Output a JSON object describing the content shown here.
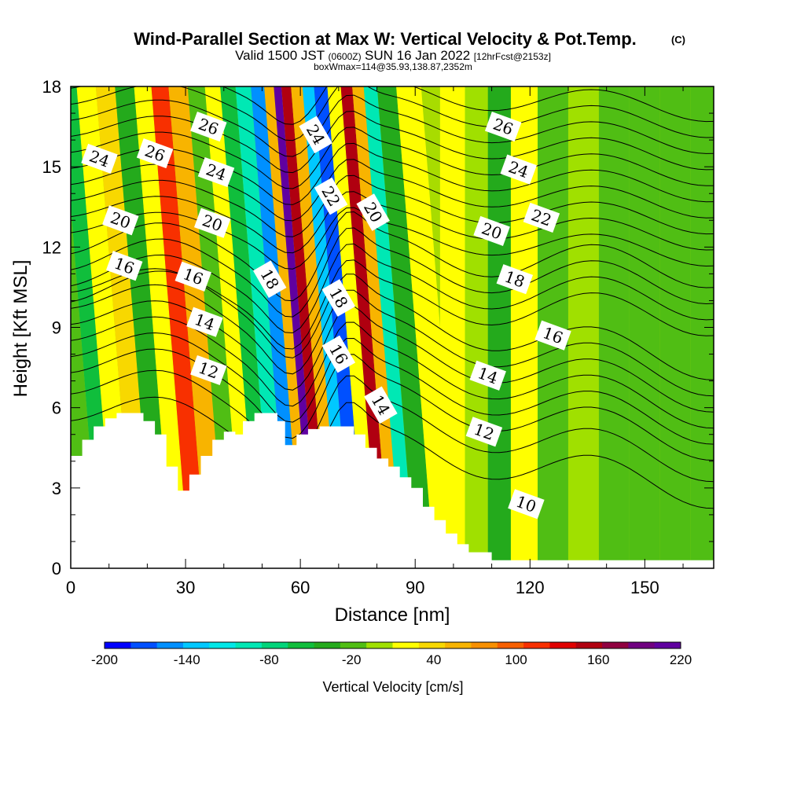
{
  "chart_data": {
    "type": "heatmap",
    "title": "Wind-Parallel Section at Max W: Vertical Velocity & Pot.Temp.",
    "title_mark": "(C)",
    "subtitle_parts": [
      "Valid 1500 JST",
      "(0600Z)",
      "SUN 16 Jan 2022",
      "[12hrFcst@2153z]"
    ],
    "subtitle2": "boxWmax=114@35.93,138.87,2352m",
    "xlabel": "Distance [nm]",
    "ylabel": "Height [Kft MSL]",
    "xlim": [
      0,
      168
    ],
    "ylim": [
      0,
      18
    ],
    "x_ticks": [
      0,
      30,
      60,
      90,
      120,
      150
    ],
    "y_ticks": [
      0,
      3,
      6,
      9,
      12,
      15,
      18
    ],
    "colorbar": {
      "label": "Vertical Velocity [cm/s]",
      "tick_labels": [
        "-200",
        "-140",
        "-80",
        "-20",
        "40",
        "100",
        "160",
        "220"
      ],
      "colors": [
        "#0000ff",
        "#0050ff",
        "#0090ff",
        "#00c8ff",
        "#00e8e8",
        "#00e8b4",
        "#00d47a",
        "#10be3c",
        "#24aa1c",
        "#50be14",
        "#a0e000",
        "#ffff00",
        "#f8d800",
        "#f8b400",
        "#f89000",
        "#f86000",
        "#f83000",
        "#e00000",
        "#b00010",
        "#900040",
        "#700080",
        "#6000a0"
      ]
    },
    "terrain_kft": [
      [
        0,
        4.2
      ],
      [
        3,
        4.2
      ],
      [
        3,
        4.8
      ],
      [
        6,
        4.8
      ],
      [
        6,
        5.3
      ],
      [
        9,
        5.3
      ],
      [
        9,
        5.6
      ],
      [
        12,
        5.6
      ],
      [
        12,
        5.8
      ],
      [
        19,
        5.8
      ],
      [
        19,
        5.5
      ],
      [
        22,
        5.5
      ],
      [
        22,
        5.0
      ],
      [
        25,
        5.0
      ],
      [
        25,
        3.8
      ],
      [
        28,
        3.8
      ],
      [
        28,
        2.9
      ],
      [
        31,
        2.9
      ],
      [
        31,
        3.5
      ],
      [
        34,
        3.5
      ],
      [
        34,
        4.2
      ],
      [
        37,
        4.2
      ],
      [
        37,
        4.8
      ],
      [
        40,
        4.8
      ],
      [
        40,
        5.1
      ],
      [
        43,
        5.1
      ],
      [
        43,
        5.0
      ],
      [
        45,
        5.0
      ],
      [
        45,
        5.5
      ],
      [
        48,
        5.5
      ],
      [
        48,
        5.8
      ],
      [
        54,
        5.8
      ],
      [
        54,
        5.5
      ],
      [
        56,
        5.5
      ],
      [
        56,
        4.6
      ],
      [
        59,
        4.6
      ],
      [
        59,
        5.0
      ],
      [
        62,
        5.0
      ],
      [
        62,
        5.2
      ],
      [
        65,
        5.2
      ],
      [
        65,
        5.3
      ],
      [
        74,
        5.3
      ],
      [
        74,
        5.0
      ],
      [
        77,
        5.0
      ],
      [
        77,
        4.5
      ],
      [
        80,
        4.5
      ],
      [
        80,
        4.1
      ],
      [
        83,
        4.1
      ],
      [
        83,
        3.8
      ],
      [
        86,
        3.8
      ],
      [
        86,
        3.4
      ],
      [
        89,
        3.4
      ],
      [
        89,
        3.0
      ],
      [
        92,
        3.0
      ],
      [
        92,
        2.3
      ],
      [
        95,
        2.3
      ],
      [
        95,
        1.8
      ],
      [
        98,
        1.8
      ],
      [
        98,
        1.3
      ],
      [
        101,
        1.3
      ],
      [
        101,
        0.9
      ],
      [
        104,
        0.9
      ],
      [
        104,
        0.6
      ],
      [
        110,
        0.6
      ],
      [
        110,
        0.3
      ],
      [
        168,
        0.3
      ]
    ],
    "velocity_bands": [
      {
        "x": 1,
        "value": -10
      },
      {
        "x": 4,
        "value": -50
      },
      {
        "x": 9,
        "value": 10
      },
      {
        "x": 14,
        "value": 30
      },
      {
        "x": 19,
        "value": -40
      },
      {
        "x": 24,
        "value": 20
      },
      {
        "x": 28,
        "value": 110
      },
      {
        "x": 33,
        "value": 60
      },
      {
        "x": 38,
        "value": -20
      },
      {
        "x": 42,
        "value": 10
      },
      {
        "x": 46,
        "value": -60
      },
      {
        "x": 50,
        "value": -100
      },
      {
        "x": 54,
        "value": -160
      },
      {
        "x": 57,
        "value": 60
      },
      {
        "x": 59,
        "value": 210
      },
      {
        "x": 61,
        "value": 150
      },
      {
        "x": 64,
        "value": 60
      },
      {
        "x": 67,
        "value": -130
      },
      {
        "x": 70,
        "value": -170
      },
      {
        "x": 74,
        "value": 20
      },
      {
        "x": 77,
        "value": 150
      },
      {
        "x": 80,
        "value": 60
      },
      {
        "x": 83,
        "value": -90
      },
      {
        "x": 87,
        "value": -30
      },
      {
        "x": 93,
        "value": 10
      },
      {
        "x": 100,
        "value": 20
      },
      {
        "x": 106,
        "value": 0
      },
      {
        "x": 112,
        "value": -30
      },
      {
        "x": 118,
        "value": 10
      },
      {
        "x": 126,
        "value": -20
      },
      {
        "x": 134,
        "value": 0
      },
      {
        "x": 142,
        "value": -10
      },
      {
        "x": 150,
        "value": -20
      },
      {
        "x": 158,
        "value": -15
      },
      {
        "x": 166,
        "value": -20
      }
    ],
    "isentrope_labels": [
      {
        "text": "24",
        "x": 7.5,
        "y": 15.3
      },
      {
        "text": "26",
        "x": 22,
        "y": 15.5
      },
      {
        "text": "26",
        "x": 36,
        "y": 16.5
      },
      {
        "text": "24",
        "x": 38,
        "y": 14.8
      },
      {
        "text": "20",
        "x": 13,
        "y": 13.0
      },
      {
        "text": "20",
        "x": 37,
        "y": 12.9
      },
      {
        "text": "16",
        "x": 14,
        "y": 11.3
      },
      {
        "text": "16",
        "x": 32,
        "y": 10.9
      },
      {
        "text": "18",
        "x": 52,
        "y": 10.8
      },
      {
        "text": "14",
        "x": 35,
        "y": 9.2
      },
      {
        "text": "12",
        "x": 36,
        "y": 7.4
      },
      {
        "text": "24",
        "x": 64,
        "y": 16.2
      },
      {
        "text": "22",
        "x": 68,
        "y": 13.9
      },
      {
        "text": "20",
        "x": 79,
        "y": 13.3
      },
      {
        "text": "18",
        "x": 70,
        "y": 10.1
      },
      {
        "text": "16",
        "x": 70,
        "y": 8.0
      },
      {
        "text": "14",
        "x": 81,
        "y": 6.1
      },
      {
        "text": "26",
        "x": 113,
        "y": 16.5
      },
      {
        "text": "24",
        "x": 117,
        "y": 14.9
      },
      {
        "text": "22",
        "x": 123,
        "y": 13.1
      },
      {
        "text": "20",
        "x": 110,
        "y": 12.6
      },
      {
        "text": "18",
        "x": 116,
        "y": 10.8
      },
      {
        "text": "16",
        "x": 126,
        "y": 8.7
      },
      {
        "text": "14",
        "x": 109,
        "y": 7.2
      },
      {
        "text": "12",
        "x": 108,
        "y": 5.1
      },
      {
        "text": "10",
        "x": 119,
        "y": 2.4
      }
    ],
    "isentrope_levels_kft": [
      4.6,
      5.6,
      6.4,
      7.0,
      7.6,
      8.2,
      8.8,
      9.4,
      10.0,
      10.6,
      11.2,
      11.8,
      12.4,
      13.0,
      13.6,
      14.2,
      14.8,
      15.4,
      16.0,
      16.6,
      17.2,
      17.8
    ]
  }
}
